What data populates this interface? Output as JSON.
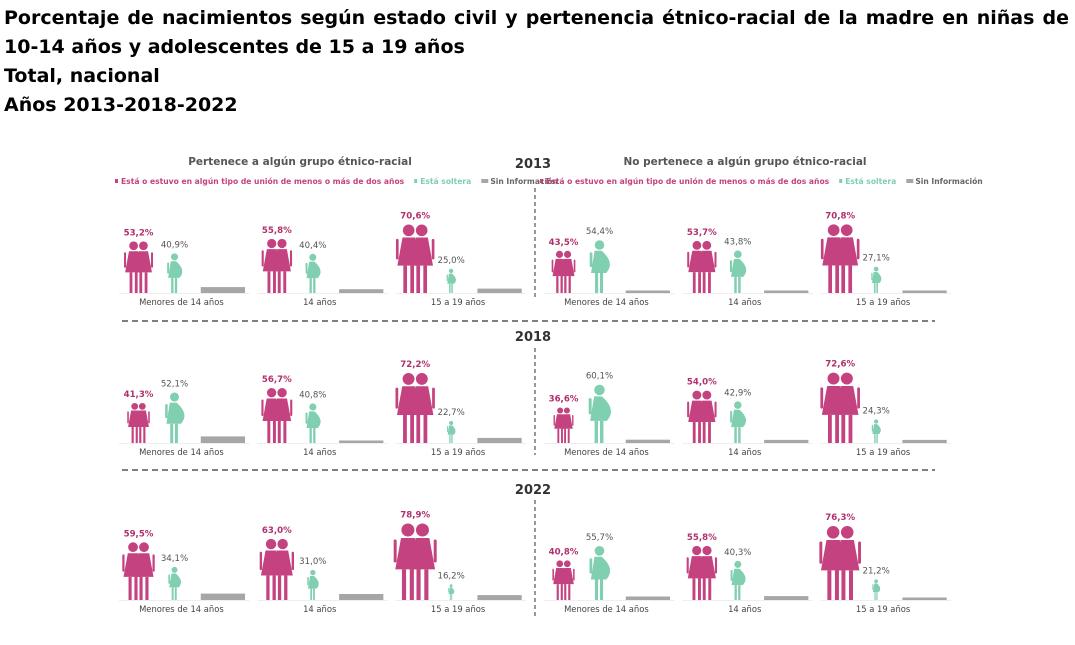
{
  "title": {
    "line1": "Porcentaje de nacimientos según estado civil y pertenencia étnico-racial de la madre en niñas de",
    "line2": "10-14 años y adolescentes de 15 a 19 años",
    "line3": "Total, nacional",
    "line4": "Años 2013-2018-2022"
  },
  "colors": {
    "union": "#c4427f",
    "soltera": "#7fcfb0",
    "sin_info": "#a6a6a6",
    "union_label": "#b0306e",
    "soltera_label": "#3fa884",
    "text": "#444444",
    "divider": "#555555"
  },
  "chart_data": {
    "type": "pictogram-bar",
    "panel_titles": {
      "left": "Pertenece a algún grupo étnico-racial",
      "right": "No pertenece a algún grupo étnico-racial"
    },
    "legend": {
      "union": "Está o estuvo en algún tipo de unión de menos o más de dos años",
      "soltera": "Está soltera",
      "sin_info": "Sin Información"
    },
    "categories": [
      "Menores de 14 años",
      "14 años",
      "15 a 19 años"
    ],
    "years": [
      {
        "year": "2013",
        "pertenece": {
          "union": [
            53.2,
            55.8,
            70.6
          ],
          "soltera": [
            40.9,
            40.4,
            25.0
          ],
          "sin_info": [
            5.9,
            3.8,
            4.4
          ]
        },
        "no_pertenece": {
          "union": [
            43.5,
            53.7,
            70.8
          ],
          "soltera": [
            54.4,
            43.8,
            27.1
          ],
          "sin_info": [
            2.1,
            2.5,
            2.1
          ]
        },
        "labels": {
          "pertenece": {
            "union": [
              "53,2%",
              "55,8%",
              "70,6%"
            ],
            "soltera": [
              "40,9%",
              "40,4%",
              "25,0%"
            ]
          },
          "no_pertenece": {
            "union": [
              "43,5%",
              "53,7%",
              "70,8%"
            ],
            "soltera": [
              "54,4%",
              "43,8%",
              "27,1%"
            ]
          }
        }
      },
      {
        "year": "2018",
        "pertenece": {
          "union": [
            41.3,
            56.7,
            72.2
          ],
          "soltera": [
            52.1,
            40.8,
            22.7
          ],
          "sin_info": [
            6.6,
            2.5,
            5.1
          ]
        },
        "no_pertenece": {
          "union": [
            36.6,
            54.0,
            72.6
          ],
          "soltera": [
            60.1,
            42.9,
            24.3
          ],
          "sin_info": [
            3.3,
            3.1,
            3.1
          ]
        },
        "labels": {
          "pertenece": {
            "union": [
              "41,3%",
              "56,7%",
              "72,2%"
            ],
            "soltera": [
              "52,1%",
              "40,8%",
              "22,7%"
            ]
          },
          "no_pertenece": {
            "union": [
              "36,6%",
              "54,0%",
              "72,6%"
            ],
            "soltera": [
              "60,1%",
              "42,9%",
              "24,3%"
            ]
          }
        }
      },
      {
        "year": "2022",
        "pertenece": {
          "union": [
            59.5,
            63.0,
            78.9
          ],
          "soltera": [
            34.1,
            31.0,
            16.2
          ],
          "sin_info": [
            6.4,
            6.0,
            4.9
          ]
        },
        "no_pertenece": {
          "union": [
            40.8,
            55.8,
            76.3
          ],
          "soltera": [
            55.7,
            40.3,
            21.2
          ],
          "sin_info": [
            3.5,
            3.9,
            2.5
          ]
        },
        "labels": {
          "pertenece": {
            "union": [
              "59,5%",
              "63,0%",
              "78,9%"
            ],
            "soltera": [
              "34,1%",
              "31,0%",
              "16,2%"
            ]
          },
          "no_pertenece": {
            "union": [
              "40,8%",
              "55,8%",
              "76,3%"
            ],
            "soltera": [
              "55,7%",
              "40,3%",
              "21,2%"
            ]
          }
        }
      }
    ]
  }
}
